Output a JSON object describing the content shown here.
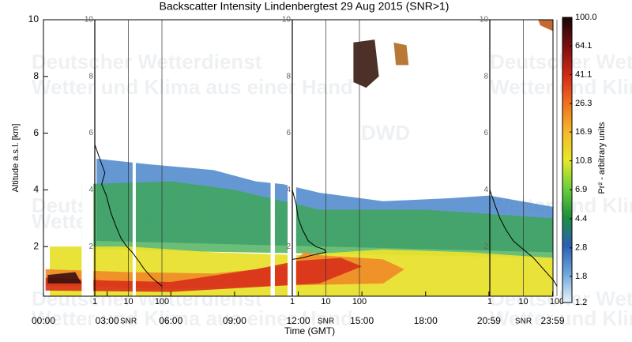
{
  "chart_data": {
    "type": "heatmap",
    "title": "Backscatter Intensity Lindenbergtest 29 Aug 2015 (SNR>1)",
    "xlabel": "Time (GMT)",
    "ylabel": "Altitude a.s.l. [km]",
    "xlim": [
      0,
      24
    ],
    "xticks": [
      {
        "value": 0,
        "label": "00:00"
      },
      {
        "value": 3,
        "label": "03:00"
      },
      {
        "value": 6,
        "label": "06:00"
      },
      {
        "value": 9,
        "label": "09:00"
      },
      {
        "value": 12,
        "label": "12:00"
      },
      {
        "value": 15,
        "label": "15:00"
      },
      {
        "value": 18,
        "label": "18:00"
      },
      {
        "value": 20.983,
        "label": "20:59"
      },
      {
        "value": 23.983,
        "label": "23:59"
      }
    ],
    "ylim": [
      0.25,
      10
    ],
    "yticks": [
      2,
      4,
      6,
      8,
      10
    ],
    "colorbar": {
      "label": "Pr² - arbitrary units",
      "lim": [
        1.2,
        100
      ],
      "log": true,
      "ticks": [
        {
          "value": 100,
          "label": "100.0"
        },
        64.1,
        41.1,
        26.3,
        16.9,
        10.8,
        6.9,
        4.4,
        2.8,
        1.8,
        1.2
      ],
      "colors": [
        "#e8f4f8",
        "#6fa8dc",
        "#2b5fb4",
        "#1e8f3c",
        "#6ccf3a",
        "#e8e82a",
        "#f5b82a",
        "#f07020",
        "#d02818",
        "#7a1010",
        "#1a0505"
      ]
    },
    "profile_insets": {
      "xticks": [
        1,
        10,
        100
      ],
      "xlabel": "SNR"
    },
    "watermark": {
      "line1": "Deutscher Wetterdienst",
      "line2": "Wetter und Klima aus einer Hand",
      "logo": "DWD"
    }
  }
}
